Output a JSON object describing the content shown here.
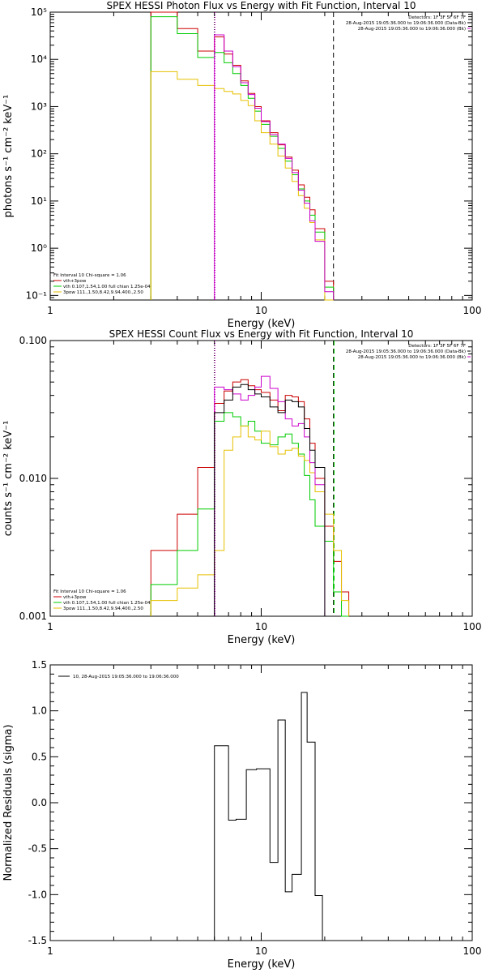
{
  "colors": {
    "total": "#000000",
    "vth_3pow": "#cc0000",
    "vth": "#00cc00",
    "pow": "#e6c000",
    "magenta": "#cc00cc",
    "obs": "#000000"
  },
  "chart_data": [
    {
      "type": "line",
      "title": "SPEX HESSI Photon Flux vs Energy with Fit Function, Interval 10",
      "xlabel": "Energy (keV)",
      "ylabel": "photons s⁻¹ cm⁻² keV⁻¹",
      "xscale": "log",
      "yscale": "log",
      "xlim": [
        1,
        100
      ],
      "ylim": [
        0.08,
        100000
      ],
      "xticks": [
        {
          "v": 1,
          "label": "1"
        },
        {
          "v": 10,
          "label": "10"
        },
        {
          "v": 100,
          "label": "100"
        }
      ],
      "yticks": [
        {
          "v": 0.1,
          "label": "10⁻¹"
        },
        {
          "v": 1,
          "label": "10⁰"
        },
        {
          "v": 10,
          "label": "10¹"
        },
        {
          "v": 100,
          "label": "10²"
        },
        {
          "v": 1000,
          "label": "10³"
        },
        {
          "v": 10000,
          "label": "10⁴"
        },
        {
          "v": 100000,
          "label": "10⁵"
        }
      ],
      "vlines": [
        {
          "x": 6.0,
          "style": "dotted",
          "color": "#000000"
        },
        {
          "x": 6.0,
          "style": "dotted",
          "color": "#cc00cc"
        },
        {
          "x": 22.0,
          "style": "dashed",
          "color": "#000000"
        }
      ],
      "legend_top": [
        {
          "text": "Detectors: 1F 3F 5F 6F 7F",
          "color": "#000000",
          "line": false
        },
        {
          "text": "28-Aug-2015 19:05:36.000 to 19:06:36.000 (Data-Bk)",
          "color": "#000000",
          "line": true
        },
        {
          "text": "28-Aug-2015 19:05:36.000 to 19:06:36.000 (Bk)",
          "color": "#cc00cc",
          "line": true
        }
      ],
      "legend_bottom": [
        {
          "text": "Fit Interval 10   Chi-square = 1.06",
          "color": "#000000"
        },
        {
          "text": "vth+3pow",
          "color": "#cc0000"
        },
        {
          "text": "vth 0.107,1.54,1.00  full chian 1.25e-04",
          "color": "#00cc00"
        },
        {
          "text": "3pow 111.,1.50,8.42,9.94,400.,2.50",
          "color": "#e6c000"
        }
      ],
      "edges": [
        3.0,
        4.0,
        5.0,
        6.0,
        6.67,
        7.33,
        8.0,
        8.67,
        9.33,
        10.0,
        11.0,
        12.0,
        13.0,
        14.0,
        15.0,
        16.0,
        17.0,
        18.0,
        20.0,
        22.0
      ],
      "series": [
        {
          "name": "vth+3pow",
          "color": "#cc0000",
          "values": [
            100000,
            45000,
            15000,
            30000,
            13000,
            7500,
            3500,
            1900,
            1000,
            500,
            280,
            155,
            85,
            45,
            22,
            12,
            6.5,
            2.6,
            0.2
          ]
        },
        {
          "name": "vth",
          "color": "#00cc00",
          "values": [
            80000,
            35000,
            11000,
            14000,
            8500,
            5000,
            2800,
            1500,
            800,
            420,
            235,
            130,
            70,
            36,
            18,
            10,
            5,
            2.2,
            0.15
          ]
        },
        {
          "name": "3pow",
          "color": "#e6c000",
          "values": [
            5500,
            3800,
            2800,
            2400,
            2100,
            1850,
            1350,
            1050,
            500,
            280,
            160,
            90,
            50,
            26,
            13,
            7,
            3.5,
            1.5,
            0.08
          ]
        },
        {
          "name": "magenta",
          "color": "#cc00cc",
          "values": [
            null,
            null,
            null,
            33000,
            15000,
            7000,
            3200,
            1800,
            920,
            480,
            255,
            160,
            80,
            40,
            17,
            9,
            3.8,
            1.4,
            0.12
          ]
        }
      ]
    },
    {
      "type": "line",
      "title": "SPEX HESSI Count Flux vs Energy with Fit Function, Interval 10",
      "xlabel": "Energy (keV)",
      "ylabel": "counts s⁻¹ cm⁻² keV⁻¹",
      "xscale": "log",
      "yscale": "log",
      "xlim": [
        1,
        100
      ],
      "ylim": [
        0.001,
        0.1
      ],
      "xticks": [
        {
          "v": 1,
          "label": "1"
        },
        {
          "v": 10,
          "label": "10"
        },
        {
          "v": 100,
          "label": "100"
        }
      ],
      "yticks": [
        {
          "v": 0.001,
          "label": "0.001"
        },
        {
          "v": 0.01,
          "label": "0.010"
        },
        {
          "v": 0.1,
          "label": "0.100"
        }
      ],
      "vlines": [
        {
          "x": 6.0,
          "style": "dotted",
          "color": "#000000"
        },
        {
          "x": 6.0,
          "style": "dotted",
          "color": "#cc00cc"
        },
        {
          "x": 22.0,
          "style": "dashed",
          "color": "#000000"
        },
        {
          "x": 22.0,
          "style": "dashed",
          "color": "#00cc00"
        }
      ],
      "legend_top": [
        {
          "text": "Detectors: 1F 3F 5F 6F 7F",
          "color": "#000000",
          "line": false
        },
        {
          "text": "28-Aug-2015 19:05:36.000 to 19:06:36.000 (Data-Bk)",
          "color": "#000000",
          "line": true
        },
        {
          "text": "28-Aug-2015 19:05:36.000 to 19:06:36.000 (Bk)",
          "color": "#cc00cc",
          "line": true
        }
      ],
      "legend_bottom": [
        {
          "text": "Fit Interval 10   Chi-square = 1.06",
          "color": "#000000"
        },
        {
          "text": "vth+3pow",
          "color": "#cc0000"
        },
        {
          "text": "vth 0.107,1.54,1.00  full chian 1.25e-04",
          "color": "#00cc00"
        },
        {
          "text": "3pow 111.,1.50,8.42,9.94,400.,2.50",
          "color": "#e6c000"
        }
      ],
      "edges": [
        3.0,
        4.0,
        5.0,
        6.0,
        6.67,
        7.33,
        8.0,
        8.67,
        9.33,
        10.0,
        11.0,
        12.0,
        13.0,
        14.0,
        15.0,
        16.0,
        17.0,
        18.0,
        20.0,
        22.0,
        24.0,
        26.0
      ],
      "series": [
        {
          "name": "vth+3pow",
          "color": "#cc0000",
          "values": [
            0.003,
            0.0055,
            0.012,
            0.035,
            0.043,
            0.05,
            0.052,
            0.047,
            0.044,
            0.042,
            0.037,
            0.031,
            0.04,
            0.039,
            0.036,
            0.027,
            0.018,
            0.01,
            0.0045,
            0.0025,
            0.0015
          ]
        },
        {
          "name": "vth",
          "color": "#00cc00",
          "values": [
            0.0017,
            0.003,
            0.006,
            0.026,
            0.03,
            0.028,
            0.024,
            0.026,
            0.022,
            0.018,
            0.0175,
            0.02,
            0.021,
            0.018,
            0.015,
            0.0105,
            0.007,
            0.0045,
            0.0035,
            0.0015,
            0.001
          ]
        },
        {
          "name": "3pow",
          "color": "#e6c000",
          "values": [
            0.0013,
            0.0016,
            0.002,
            0.003,
            0.016,
            0.02,
            0.024,
            0.02,
            0.019,
            0.022,
            0.017,
            0.015,
            0.016,
            0.0165,
            0.0145,
            0.0135,
            0.011,
            0.008,
            0.0055,
            0.003,
            0.0013
          ]
        },
        {
          "name": "magenta",
          "color": "#cc00cc",
          "values": [
            null,
            null,
            null,
            0.046,
            0.044,
            0.041,
            0.037,
            0.04,
            0.046,
            0.055,
            0.045,
            0.036,
            0.027,
            0.024,
            0.025,
            0.02,
            0.013,
            0.009,
            null,
            null,
            null
          ]
        },
        {
          "name": "Data-Bk",
          "color": "#000000",
          "values": [
            null,
            null,
            null,
            0.03,
            0.037,
            0.046,
            0.048,
            0.044,
            0.041,
            0.039,
            0.033,
            0.03,
            0.037,
            0.036,
            0.033,
            0.023,
            0.016,
            0.012,
            null,
            null,
            null
          ]
        }
      ]
    },
    {
      "type": "line",
      "title": "",
      "xlabel": "Energy (keV)",
      "ylabel": "Normalized Residuals (sigma)",
      "xscale": "log",
      "yscale": "linear",
      "xlim": [
        1,
        100
      ],
      "ylim": [
        -1.5,
        1.5
      ],
      "xticks": [
        {
          "v": 1,
          "label": "1"
        },
        {
          "v": 10,
          "label": "10"
        },
        {
          "v": 100,
          "label": "100"
        }
      ],
      "yticks": [
        {
          "v": -1.5,
          "label": "-1.5"
        },
        {
          "v": -1.0,
          "label": "-1.0"
        },
        {
          "v": -0.5,
          "label": "-0.5"
        },
        {
          "v": 0.0,
          "label": "0.0"
        },
        {
          "v": 0.5,
          "label": "0.5"
        },
        {
          "v": 1.0,
          "label": "1.0"
        },
        {
          "v": 1.5,
          "label": "1.5"
        }
      ],
      "vlines": [],
      "legend_top_left": [
        {
          "text": "10, 28-Aug-2015 19:05:36.000 to 19:06:36.000",
          "color": "#000000",
          "line": true
        }
      ],
      "edges": [
        6.0,
        7.0,
        7.6,
        8.5,
        9.5,
        10.0,
        11.0,
        12.0,
        13.0,
        14.0,
        15.5,
        16.5,
        18.0,
        19.5,
        20.8,
        22.5
      ],
      "series": [
        {
          "name": "residuals",
          "color": "#000000",
          "values": [
            0.62,
            -0.19,
            -0.18,
            0.36,
            0.37,
            0.37,
            -0.65,
            0.9,
            -0.97,
            -0.78,
            1.2,
            0.66,
            -1.01,
            -1.6,
            -1.6
          ],
          "extend_bottom": true
        }
      ]
    }
  ]
}
